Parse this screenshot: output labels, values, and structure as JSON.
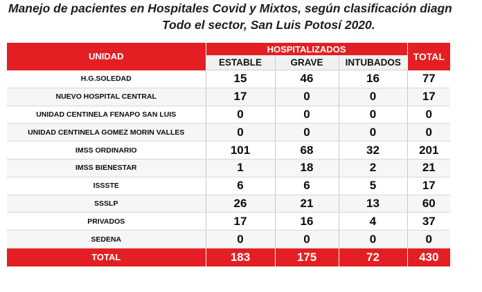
{
  "title": {
    "line1": "Manejo de pacientes en Hospitales Covid y Mixtos, según clasificación diagn",
    "line2": "Todo el sector, San Luis Potosí 2020."
  },
  "table": {
    "col_unidad": "UNIDAD",
    "col_group": "HOSPITALIZADOS",
    "col_total": "TOTAL",
    "sub_cols": [
      "ESTABLE",
      "GRAVE",
      "INTUBADOS"
    ],
    "rows": [
      {
        "unidad": "H.G.SOLEDAD",
        "estable": "15",
        "grave": "46",
        "intubados": "16",
        "total": "77"
      },
      {
        "unidad": "NUEVO HOSPITAL CENTRAL",
        "estable": "17",
        "grave": "0",
        "intubados": "0",
        "total": "17"
      },
      {
        "unidad": "UNIDAD CENTINELA FENAPO SAN LUIS",
        "estable": "0",
        "grave": "0",
        "intubados": "0",
        "total": "0"
      },
      {
        "unidad": "UNIDAD CENTINELA GOMEZ MORIN VALLES",
        "estable": "0",
        "grave": "0",
        "intubados": "0",
        "total": "0"
      },
      {
        "unidad": "IMSS ORDINARIO",
        "estable": "101",
        "grave": "68",
        "intubados": "32",
        "total": "201"
      },
      {
        "unidad": "IMSS BIENESTAR",
        "estable": "1",
        "grave": "18",
        "intubados": "2",
        "total": "21"
      },
      {
        "unidad": "ISSSTE",
        "estable": "6",
        "grave": "6",
        "intubados": "5",
        "total": "17"
      },
      {
        "unidad": "SSSLP",
        "estable": "26",
        "grave": "21",
        "intubados": "13",
        "total": "60"
      },
      {
        "unidad": "PRIVADOS",
        "estable": "17",
        "grave": "16",
        "intubados": "4",
        "total": "37"
      },
      {
        "unidad": "SEDENA",
        "estable": "0",
        "grave": "0",
        "intubados": "0",
        "total": "0"
      }
    ],
    "totals": {
      "label": "TOTAL",
      "estable": "183",
      "grave": "175",
      "intubados": "72",
      "total": "430"
    }
  },
  "colors": {
    "header_red": "#e41f23",
    "subheader_gray": "#f1f1f1"
  }
}
